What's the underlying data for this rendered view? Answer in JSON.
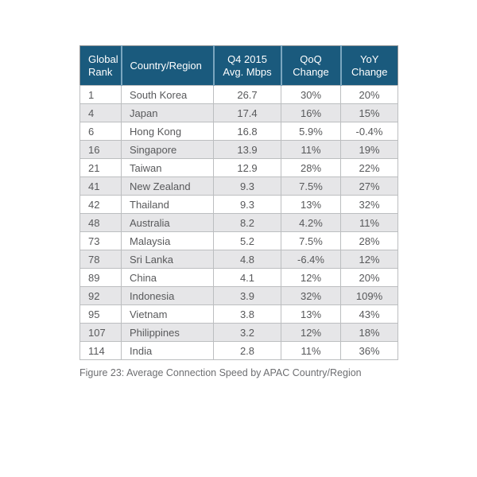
{
  "chart_data": {
    "type": "table",
    "title": "Average Connection Speed by APAC Country/Region",
    "columns": [
      {
        "label": "Global\nRank",
        "align": "left"
      },
      {
        "label": "Country/Region",
        "align": "left"
      },
      {
        "label": "Q4 2015\nAvg. Mbps",
        "align": "center"
      },
      {
        "label": "QoQ\nChange",
        "align": "center"
      },
      {
        "label": "YoY\nChange",
        "align": "center"
      }
    ],
    "rows": [
      [
        "1",
        "South Korea",
        "26.7",
        "30%",
        "20%"
      ],
      [
        "4",
        "Japan",
        "17.4",
        "16%",
        "15%"
      ],
      [
        "6",
        "Hong Kong",
        "16.8",
        "5.9%",
        "-0.4%"
      ],
      [
        "16",
        "Singapore",
        "13.9",
        "11%",
        "19%"
      ],
      [
        "21",
        "Taiwan",
        "12.9",
        "28%",
        "22%"
      ],
      [
        "41",
        "New Zealand",
        "9.3",
        "7.5%",
        "27%"
      ],
      [
        "42",
        "Thailand",
        "9.3",
        "13%",
        "32%"
      ],
      [
        "48",
        "Australia",
        "8.2",
        "4.2%",
        "11%"
      ],
      [
        "73",
        "Malaysia",
        "5.2",
        "7.5%",
        "28%"
      ],
      [
        "78",
        "Sri Lanka",
        "4.8",
        "-6.4%",
        "12%"
      ],
      [
        "89",
        "China",
        "4.1",
        "12%",
        "20%"
      ],
      [
        "92",
        "Indonesia",
        "3.9",
        "32%",
        "109%"
      ],
      [
        "95",
        "Vietnam",
        "3.8",
        "13%",
        "43%"
      ],
      [
        "107",
        "Philippines",
        "3.2",
        "12%",
        "18%"
      ],
      [
        "114",
        "India",
        "2.8",
        "11%",
        "36%"
      ]
    ]
  },
  "caption": "Figure 23: Average Connection Speed by APAC Country/Region",
  "colors": {
    "header_bg": "#1a5a7d",
    "header_text": "#ffffff",
    "header_divider": "#7ba6bf",
    "row_stripe": "#e6e6e8",
    "body_text": "#58595b",
    "border_outer": "#939598",
    "border_inner": "#bcbec0",
    "caption_text": "#6d6e71"
  }
}
